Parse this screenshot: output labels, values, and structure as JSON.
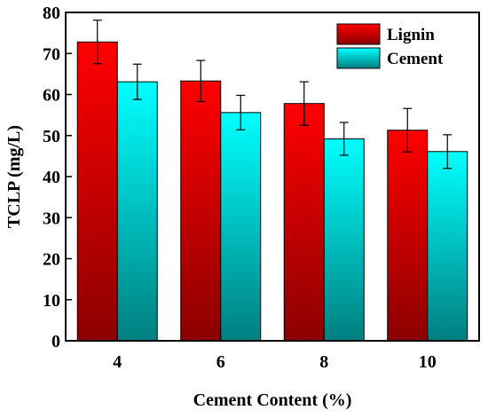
{
  "chart_data": {
    "type": "bar",
    "xlabel": "Cement Content (%)",
    "ylabel": "TCLP (mg/L)",
    "ylim": [
      0,
      80
    ],
    "yticks": [
      "0",
      "10",
      "20",
      "30",
      "40",
      "50",
      "60",
      "70",
      "80"
    ],
    "categories": [
      "4",
      "6",
      "8",
      "10"
    ],
    "series": [
      {
        "name": "Lignin",
        "values": [
          72.8,
          63.3,
          57.8,
          51.3
        ],
        "errors": [
          5.3,
          5.0,
          5.3,
          5.3
        ],
        "colors": {
          "top": "#ff0000",
          "bottom": "#8b0000"
        }
      },
      {
        "name": "Cement",
        "values": [
          63.1,
          55.6,
          49.2,
          46.1
        ],
        "errors": [
          4.3,
          4.2,
          4.0,
          4.1
        ],
        "colors": {
          "top": "#00ffff",
          "bottom": "#007f7f"
        }
      }
    ],
    "legend_position": "top-right",
    "grid": false
  }
}
